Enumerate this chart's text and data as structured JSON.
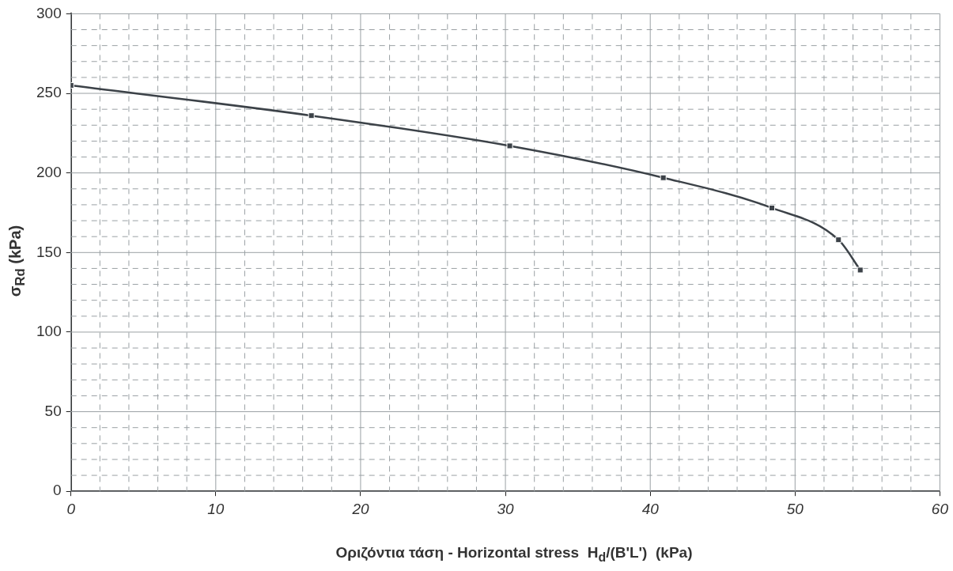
{
  "chart_data": {
    "type": "line",
    "xlabel": "Οριζόντια τάση - Horizontal stress  H$_{d}$/(B'L')  (kPa)",
    "ylabel": "σ$_{Rd}$ (kPa)",
    "x": [
      0,
      16.6,
      30.3,
      40.9,
      48.4,
      53,
      54.5
    ],
    "series": [
      {
        "color": "#3c4248",
        "values": [
          255,
          236,
          217,
          197,
          178,
          158,
          139
        ]
      }
    ],
    "marker": "square",
    "line_style": "solid",
    "grid": true,
    "legend": false,
    "xlim": [
      0,
      60
    ],
    "ylim": [
      0,
      300
    ],
    "xticks": [
      0,
      {
        "value": 2,
        "label": null
      },
      {
        "value": 4,
        "label": null
      },
      {
        "value": 6,
        "label": null
      },
      {
        "value": 8,
        "label": null
      },
      10,
      {
        "value": 12,
        "label": null
      },
      {
        "value": 14,
        "label": null
      },
      {
        "value": 16,
        "label": null
      },
      {
        "value": 18,
        "label": null
      },
      20,
      {
        "value": 22,
        "label": null
      },
      {
        "value": 24,
        "label": null
      },
      {
        "value": 26,
        "label": null
      },
      {
        "value": 28,
        "label": null
      },
      30,
      {
        "value": 32,
        "label": null
      },
      {
        "value": 34,
        "label": null
      },
      {
        "value": 36,
        "label": null
      },
      {
        "value": 38,
        "label": null
      },
      40,
      {
        "value": 42,
        "label": null
      },
      {
        "value": 44,
        "label": null
      },
      {
        "value": 46,
        "label": null
      },
      {
        "value": 48,
        "label": null
      },
      50,
      {
        "value": 52,
        "label": null
      },
      {
        "value": 54,
        "label": null
      },
      {
        "value": 56,
        "label": null
      },
      {
        "value": 58,
        "label": null
      },
      60
    ],
    "yticks": [
      0,
      {
        "value": 10,
        "label": null
      },
      {
        "value": 20,
        "label": null
      },
      {
        "value": 30,
        "label": null
      },
      {
        "value": 40,
        "label": null
      },
      50,
      {
        "value": 60,
        "label": null
      },
      {
        "value": 70,
        "label": null
      },
      {
        "value": 80,
        "label": null
      },
      {
        "value": 90,
        "label": null
      },
      100,
      {
        "value": 110,
        "label": null
      },
      {
        "value": 120,
        "label": null
      },
      {
        "value": 130,
        "label": null
      },
      {
        "value": 140,
        "label": null
      },
      150,
      {
        "value": 160,
        "label": null
      },
      {
        "value": 170,
        "label": null
      },
      {
        "value": 180,
        "label": null
      },
      {
        "value": 190,
        "label": null
      },
      200,
      {
        "value": 210,
        "label": null
      },
      {
        "value": 220,
        "label": null
      },
      {
        "value": 230,
        "label": null
      },
      {
        "value": 240,
        "label": null
      },
      250,
      {
        "value": 260,
        "label": null
      },
      {
        "value": 270,
        "label": null
      },
      {
        "value": 280,
        "label": null
      },
      {
        "value": 290,
        "label": null
      },
      300
    ]
  }
}
